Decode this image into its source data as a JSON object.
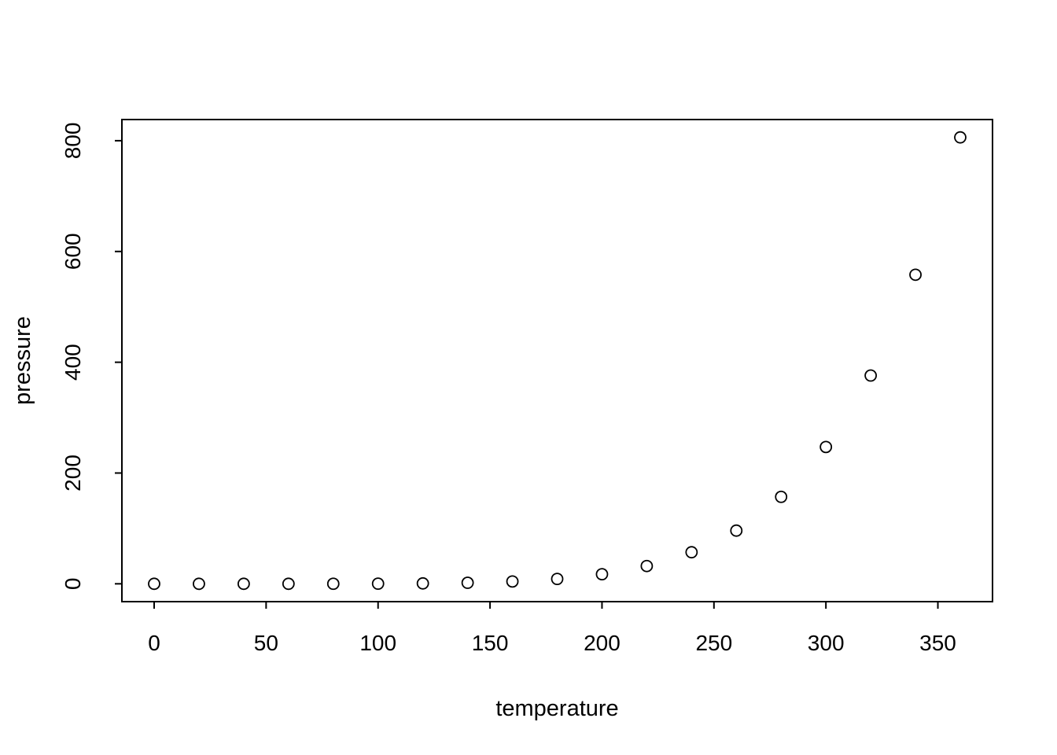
{
  "figure": {
    "xlabel": "temperature",
    "ylabel": "pressure"
  },
  "chart_data": {
    "type": "scatter",
    "title": "",
    "xlabel": "temperature",
    "ylabel": "pressure",
    "x": [
      0,
      20,
      40,
      60,
      80,
      100,
      120,
      140,
      160,
      180,
      200,
      220,
      240,
      260,
      280,
      300,
      320,
      340,
      360
    ],
    "y": [
      0.0002,
      0.0012,
      0.006,
      0.03,
      0.09,
      0.27,
      0.75,
      1.85,
      4.2,
      8.8,
      17.3,
      32.1,
      57.0,
      96.0,
      157.0,
      247.0,
      376.0,
      558.0,
      806.0
    ],
    "xticks": [
      0,
      50,
      100,
      150,
      200,
      250,
      300,
      350
    ],
    "yticks": [
      0,
      200,
      400,
      600,
      800
    ],
    "xlim": [
      -14.4,
      374.4
    ],
    "ylim": [
      -32.2,
      838.2
    ],
    "grid": false,
    "legend": "none",
    "marker": "open-circle",
    "marker_color": "#000000",
    "background": "#ffffff"
  }
}
